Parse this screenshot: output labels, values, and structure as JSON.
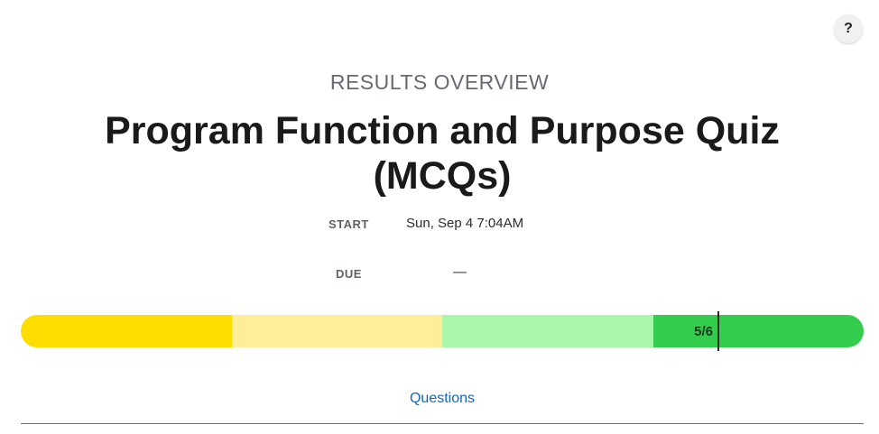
{
  "help": {
    "label": "?"
  },
  "header": {
    "eyebrow": "RESULTS OVERVIEW",
    "title": "Program Function and Purpose Quiz (MCQs)"
  },
  "meta": {
    "start_label": "START",
    "start_value": "Sun, Sep 4 7:04AM",
    "due_label": "DUE",
    "due_value": "—"
  },
  "score": {
    "label": "5/6",
    "correct": 5,
    "total": 6,
    "band_colors": [
      "#ffdd00",
      "#ffee99",
      "#aaf7aa",
      "#33cc4d"
    ]
  },
  "tabs": {
    "questions_label": "Questions"
  }
}
